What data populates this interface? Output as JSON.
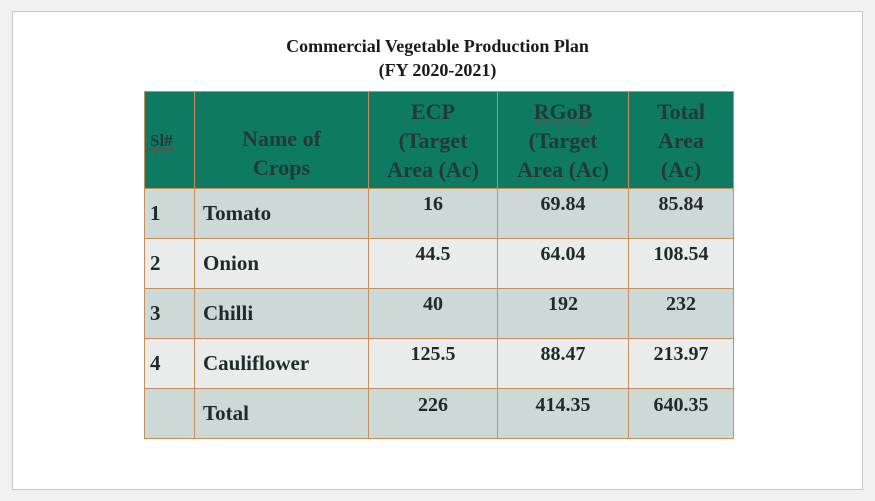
{
  "document": {
    "title_line1": "Commercial Vegetable Production Plan",
    "title_line2": "(FY 2020-2021)"
  },
  "table": {
    "headers": {
      "sl": "Sl#",
      "crop": [
        "Name of",
        "Crops"
      ],
      "ecp": [
        "ECP",
        "(Target",
        "Area (Ac)"
      ],
      "rgob": [
        "RGoB",
        "(Target",
        "Area (Ac)"
      ],
      "total": [
        "Total",
        "Area",
        "(Ac)"
      ]
    },
    "rows": [
      {
        "sl": "1",
        "crop": "Tomato",
        "ecp": "16",
        "rgob": "69.84",
        "total": "85.84"
      },
      {
        "sl": "2",
        "crop": "Onion",
        "ecp": "44.5",
        "rgob": "64.04",
        "total": "108.54"
      },
      {
        "sl": "3",
        "crop": "Chilli",
        "ecp": "40",
        "rgob": "192",
        "total": "232"
      },
      {
        "sl": "4",
        "crop": "Cauliflower",
        "ecp": "125.5",
        "rgob": "88.47",
        "total": "213.97"
      }
    ],
    "total_row": {
      "sl": "",
      "crop": "Total",
      "ecp": "226",
      "rgob": "414.35",
      "total": "640.35"
    }
  },
  "colors": {
    "header_bg": "#0f7a62",
    "row_dark": "#cdd9d7",
    "row_light": "#e9eceb",
    "border": "#c98e5f"
  }
}
